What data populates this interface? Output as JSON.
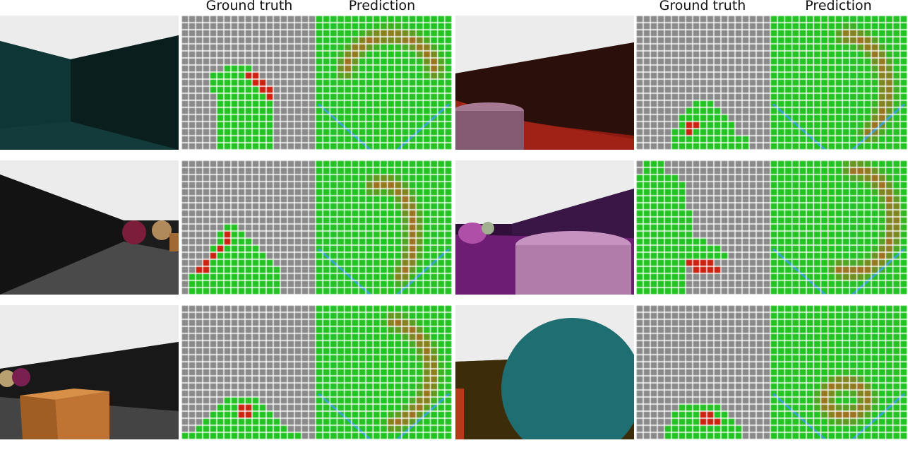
{
  "headers": {
    "left_ground_truth": "Ground truth",
    "left_prediction": "Prediction",
    "right_ground_truth": "Ground truth",
    "right_prediction": "Prediction"
  },
  "colors": {
    "grid_unknown": "#8a8a8a",
    "grid_free": "#22c322",
    "grid_occupied": "#cc2211",
    "grid_line": "#ffffff",
    "fov_line": "#3aa0d8",
    "prediction_hot": "#b4641e"
  },
  "examples": [
    {
      "id": "row1-left",
      "scene": "dark teal corner, white ceiling",
      "gt_free_profile": [
        [
          -1,
          -1
        ],
        [
          -1,
          -1
        ],
        [
          -1,
          -1
        ],
        [
          -1,
          -1
        ],
        [
          -1,
          -1
        ],
        [
          -1,
          -1
        ],
        [
          -1,
          -1
        ],
        [
          -1,
          -1
        ],
        [
          -1,
          -1
        ],
        [
          -1,
          -1
        ],
        [
          -1,
          -1
        ],
        [
          -1,
          -1
        ],
        [
          -1,
          -1
        ],
        [
          -1,
          -1
        ],
        [
          -1,
          -1
        ],
        [
          -1,
          -1
        ],
        [
          -1,
          -1
        ],
        [
          -1,
          -1
        ],
        [
          -1,
          -1
        ],
        [
          -1,
          -1
        ],
        [
          -1,
          -1
        ],
        [
          -1,
          -1
        ]
      ],
      "occupied": [
        [
          6,
          10
        ],
        [
          6,
          11
        ],
        [
          7,
          10
        ],
        [
          7,
          11
        ],
        [
          7,
          12
        ],
        [
          8,
          12
        ],
        [
          8,
          13
        ],
        [
          9,
          13
        ]
      ]
    }
  ]
}
